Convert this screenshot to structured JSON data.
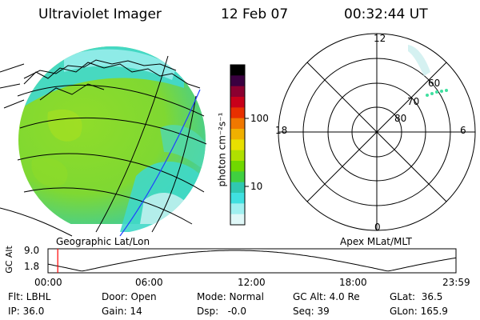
{
  "header": {
    "instrument": "Ultraviolet Imager",
    "date": "12 Feb 07",
    "time": "00:32:44 UT"
  },
  "geo_panel": {
    "label": "Geographic Lat/Lon"
  },
  "polar_panel": {
    "label": "Apex MLat/MLT",
    "mlt_labels": [
      "12",
      "18",
      "6",
      "0"
    ],
    "lat_labels": [
      "60",
      "70",
      "80"
    ]
  },
  "colorbar": {
    "unit_label": "photon cm⁻²s⁻¹",
    "ticks": [
      "100",
      "10"
    ],
    "colors": [
      "#000000",
      "#3a0040",
      "#8b0030",
      "#c8001a",
      "#e83000",
      "#f07800",
      "#f0b000",
      "#e8e000",
      "#b0e000",
      "#70d800",
      "#40d040",
      "#30c8b0",
      "#40e0e0",
      "#a0f0f0",
      "#e0f8f8"
    ]
  },
  "altitude_plot": {
    "ylabel": "GC Alt",
    "ymax_label": "9.0",
    "ymin_label": "1.8",
    "x_labels": [
      "00:00",
      "06:00",
      "12:00",
      "18:00",
      "23:59"
    ],
    "current_marker_hour": 0.55
  },
  "status": {
    "row1": [
      "Flt: LBHL",
      "Door: Open",
      "Mode: Normal",
      "GC Alt: 4.0 Re",
      "GLat:  36.5"
    ],
    "row2": [
      "IP: 36.0",
      "Gain: 14",
      "Dsp:   -0.0",
      "Seq: 39",
      "GLon: 165.9"
    ]
  }
}
